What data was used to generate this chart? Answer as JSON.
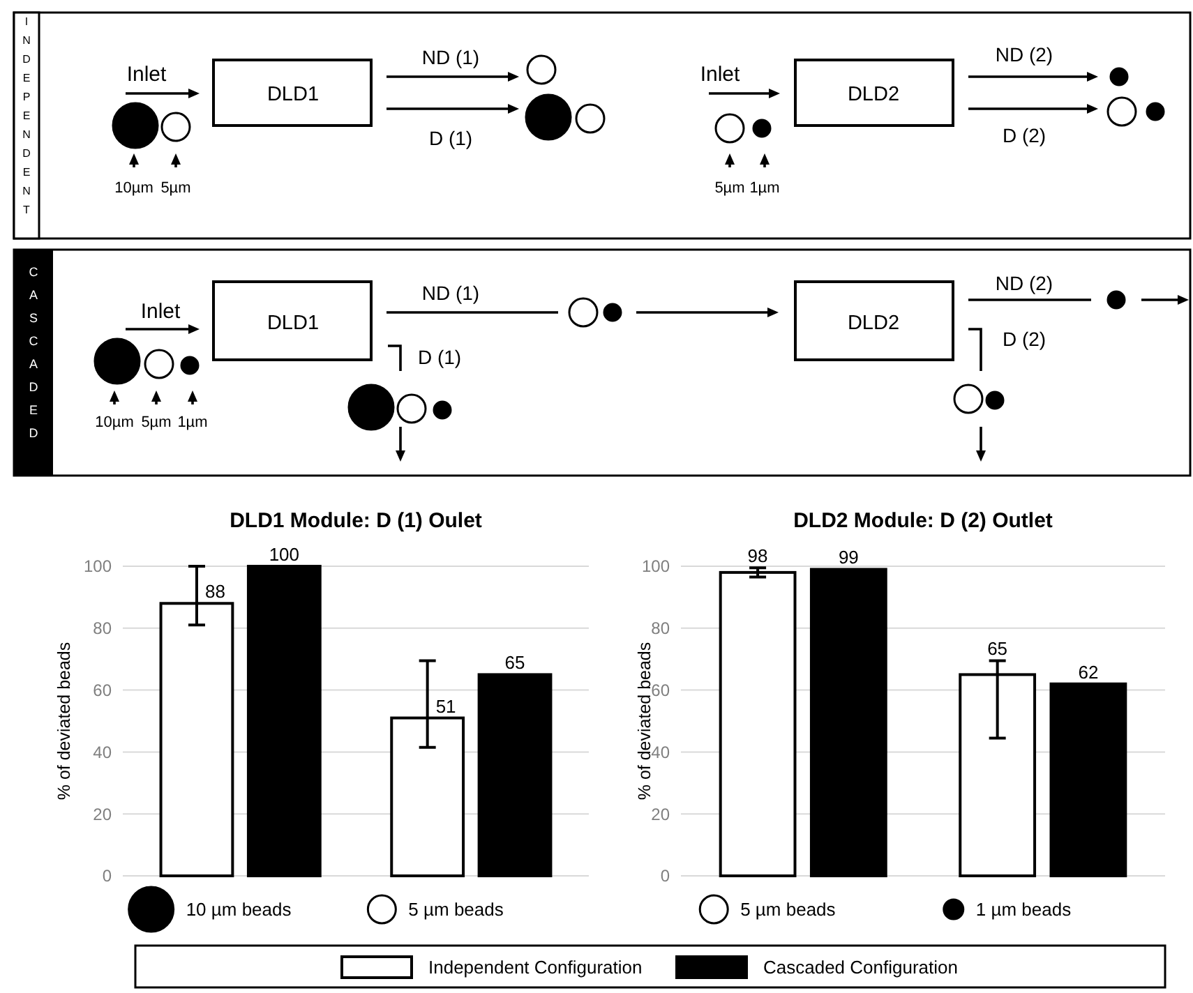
{
  "chart_data": [
    {
      "type": "other",
      "annotations": [
        "INDEPENDENT",
        "Inlet",
        "DLD1",
        "ND (1)",
        "D (1)",
        "10µm",
        "5µm",
        "Inlet",
        "DLD2",
        "ND (2)",
        "D (2)",
        "5µm",
        "1µm",
        "CASCADED",
        "Inlet",
        "DLD1",
        "ND (1)",
        "D (1)",
        "10µm",
        "5µm",
        "1µm",
        "DLD2",
        "ND (2)",
        "D (2)"
      ]
    },
    {
      "type": "bar",
      "title": "DLD1 Module: D (1) Oulet",
      "ylabel": "% of deviated beads",
      "categories": [
        "10 µm beads",
        "5 µm beads"
      ],
      "series": [
        {
          "name": "Independent Configuration",
          "color": "#ffffff",
          "values": [
            88,
            51
          ],
          "errors": [
            [
              81,
              100
            ],
            [
              41.5,
              69.5
            ]
          ]
        },
        {
          "name": "Cascaded Configuration",
          "color": "#000000",
          "values": [
            100,
            65
          ]
        }
      ],
      "ylim": [
        0,
        100
      ],
      "yticks": [
        0,
        20,
        40,
        60,
        80,
        100
      ],
      "grid": "y",
      "data_labels": true,
      "legend": "bottom"
    },
    {
      "type": "bar",
      "title": "DLD2 Module: D (2) Outlet",
      "ylabel": "% of deviated beads",
      "categories": [
        "5 µm beads",
        "1 µm beads"
      ],
      "series": [
        {
          "color": "#ffffff",
          "values": [
            98,
            65
          ],
          "errors": [
            [
              96.5,
              99.5
            ],
            [
              44.5,
              69.5
            ]
          ]
        },
        {
          "color": "#000000",
          "values": [
            99,
            62
          ]
        }
      ],
      "ylim": [
        0,
        100
      ],
      "yticks": [
        0,
        20,
        40,
        60,
        80,
        100
      ],
      "grid": "y",
      "data_labels": true
    }
  ]
}
